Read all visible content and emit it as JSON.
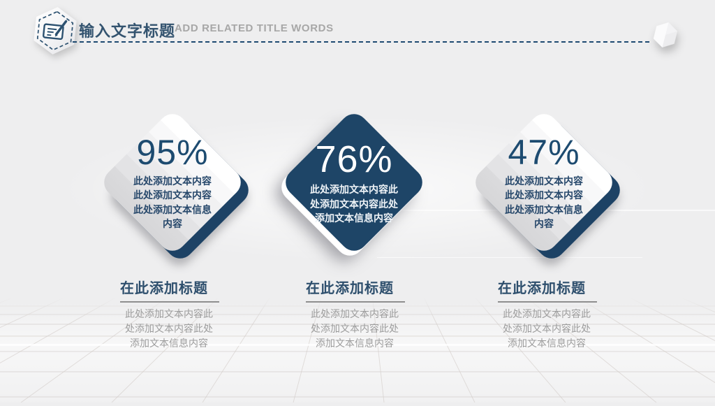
{
  "header": {
    "badge_icon": "edit-document-icon",
    "title_zh": "输入文字标题",
    "title_en": "ADD RELATED TITLE WORDS"
  },
  "decor": {
    "corner_icon": "hexagon-3d-icon",
    "divider_style": "dashed"
  },
  "stats": [
    {
      "value": "95%",
      "theme": "light",
      "desc": [
        "此处添加文本内容",
        "此处添加文本内容",
        "此处添加文本信息",
        "内容"
      ]
    },
    {
      "value": "76%",
      "theme": "dark",
      "desc": [
        "此处添加文本内容此",
        "处添加文本内容此处",
        "添加文本信息内容"
      ]
    },
    {
      "value": "47%",
      "theme": "light",
      "desc": [
        "此处添加文本内容",
        "此处添加文本内容",
        "此处添加文本信息",
        "内容"
      ]
    }
  ],
  "captions": [
    {
      "title": "在此添加标题",
      "body": [
        "此处添加文本内容此",
        "处添加文本内容此处",
        "添加文本信息内容"
      ]
    },
    {
      "title": "在此添加标题",
      "body": [
        "此处添加文本内容此",
        "处添加文本内容此处",
        "添加文本信息内容"
      ]
    },
    {
      "title": "在此添加标题",
      "body": [
        "此处添加文本内容此",
        "处添加文本内容此处",
        "添加文本信息内容"
      ]
    }
  ],
  "colors": {
    "background": "#eeeeef",
    "navy": "#1d4265",
    "navy_front": "#1e4567",
    "title_text": "#33536f",
    "subtitle_text": "#a7a7a7",
    "caption_body_text": "#9c9c9c",
    "grid_line": "#cfc8c4"
  }
}
